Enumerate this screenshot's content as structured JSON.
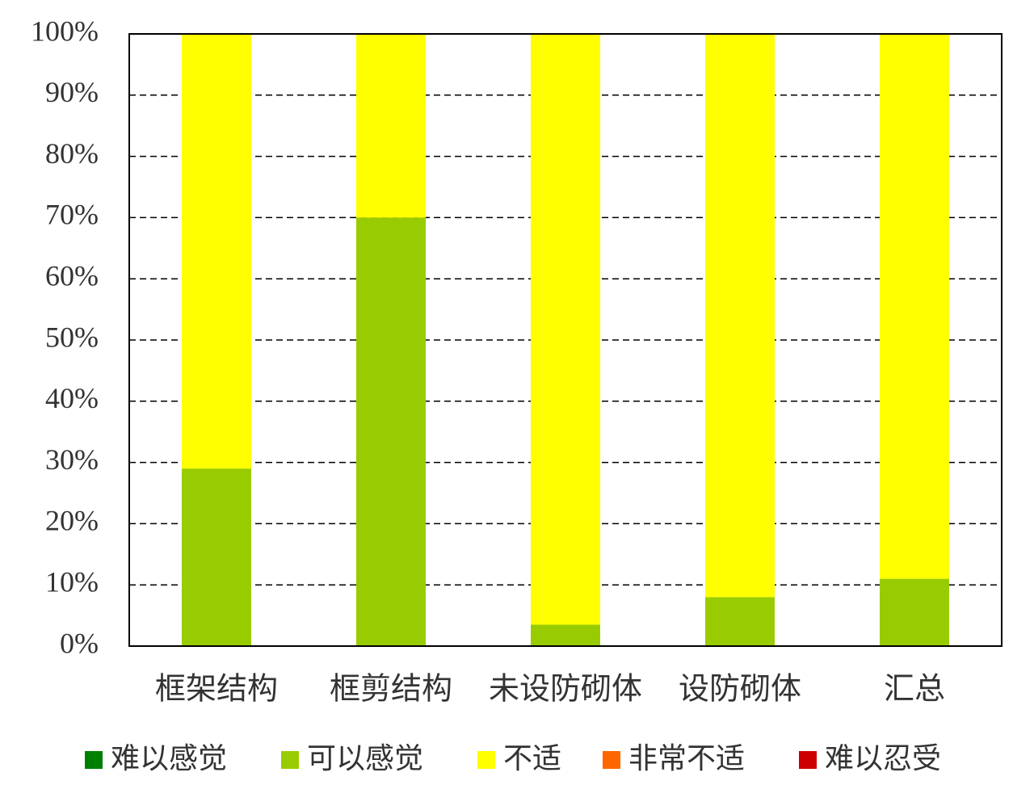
{
  "chart_data": {
    "type": "stacked_bar",
    "categories": [
      "框架结构",
      "框剪结构",
      "未设防砌体",
      "设防砌体",
      "汇总"
    ],
    "series": [
      {
        "name": "难以感觉",
        "color": "#008000",
        "values": [
          0,
          0,
          0,
          0,
          0
        ]
      },
      {
        "name": "可以感觉",
        "color": "#99cc00",
        "values": [
          29,
          70,
          3.5,
          8,
          11
        ]
      },
      {
        "name": "不适",
        "color": "#ffff00",
        "values": [
          71,
          30,
          96.5,
          92,
          89
        ]
      },
      {
        "name": "非常不适",
        "color": "#ff6600",
        "values": [
          0,
          0,
          0,
          0,
          0
        ]
      },
      {
        "name": "难以忍受",
        "color": "#cc0000",
        "values": [
          0,
          0,
          0,
          0,
          0
        ]
      }
    ],
    "ylim": [
      0,
      100
    ],
    "yticks": [
      {
        "value": 0,
        "label": "0%"
      },
      {
        "value": 10,
        "label": "10%"
      },
      {
        "value": 20,
        "label": "20%"
      },
      {
        "value": 30,
        "label": "30%"
      },
      {
        "value": 40,
        "label": "40%"
      },
      {
        "value": 50,
        "label": "50%"
      },
      {
        "value": 60,
        "label": "60%"
      },
      {
        "value": 70,
        "label": "70%"
      },
      {
        "value": 80,
        "label": "80%"
      },
      {
        "value": 90,
        "label": "90%"
      },
      {
        "value": 100,
        "label": "100%"
      }
    ],
    "grid": true,
    "legend": "bottom"
  }
}
